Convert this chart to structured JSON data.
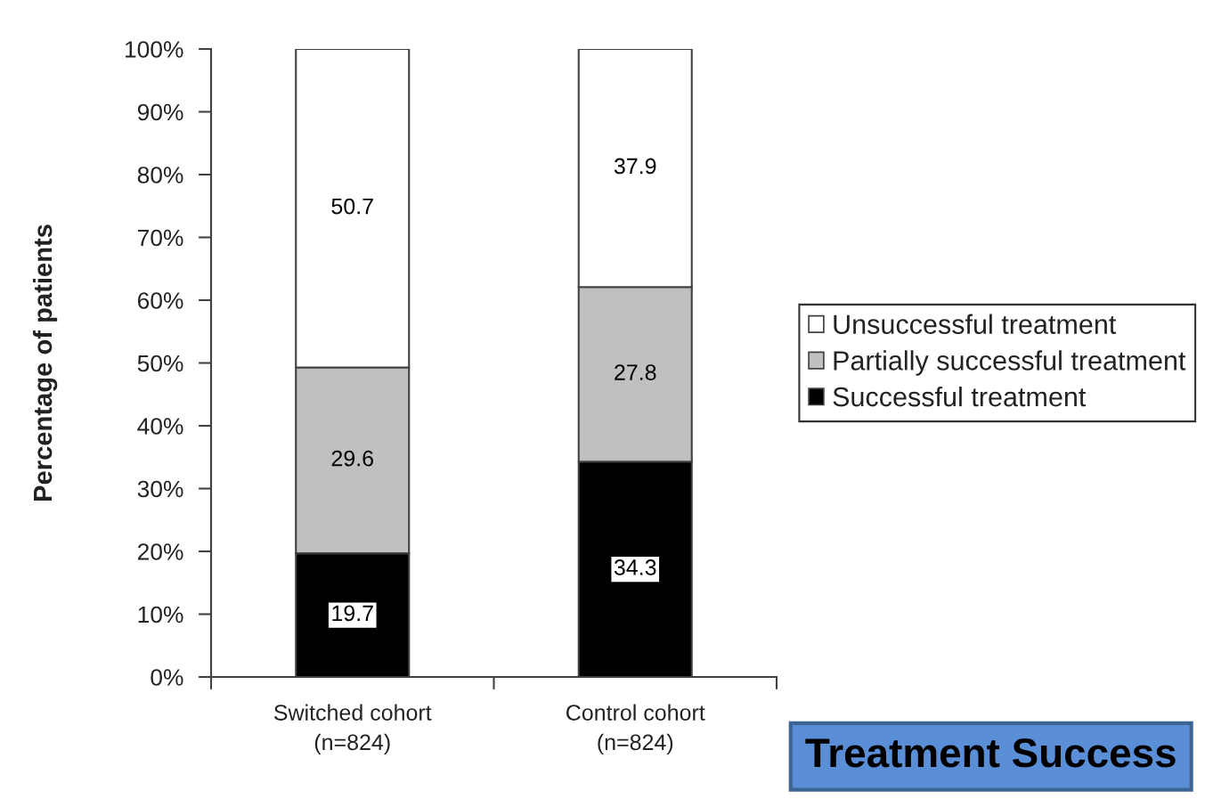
{
  "chart_data": {
    "type": "bar",
    "stacked": true,
    "ylabel": "Percentage of patients",
    "categories": [
      "Switched cohort\n(n=824)",
      "Control cohort\n(n=824)"
    ],
    "series": [
      {
        "name": "Successful treatment",
        "color": "#000000",
        "values": [
          19.7,
          34.3
        ]
      },
      {
        "name": "Partially successful treatment",
        "color": "#c0c0c0",
        "values": [
          29.6,
          27.8
        ]
      },
      {
        "name": "Unsuccessful treatment",
        "color": "#ffffff",
        "values": [
          50.7,
          37.9
        ]
      }
    ],
    "ylim": [
      0,
      100
    ],
    "yticks": [
      {
        "value": 0,
        "label": "0%"
      },
      {
        "value": 10,
        "label": "10%"
      },
      {
        "value": 20,
        "label": "20%"
      },
      {
        "value": 30,
        "label": "30%"
      },
      {
        "value": 40,
        "label": "40%"
      },
      {
        "value": 50,
        "label": "50%"
      },
      {
        "value": 60,
        "label": "60%"
      },
      {
        "value": 70,
        "label": "70%"
      },
      {
        "value": 80,
        "label": "80%"
      },
      {
        "value": 90,
        "label": "90%"
      },
      {
        "value": 100,
        "label": "100%"
      }
    ],
    "data_labels": true,
    "legend": "right",
    "grid": false,
    "annotations": [
      "Treatment Success"
    ]
  }
}
